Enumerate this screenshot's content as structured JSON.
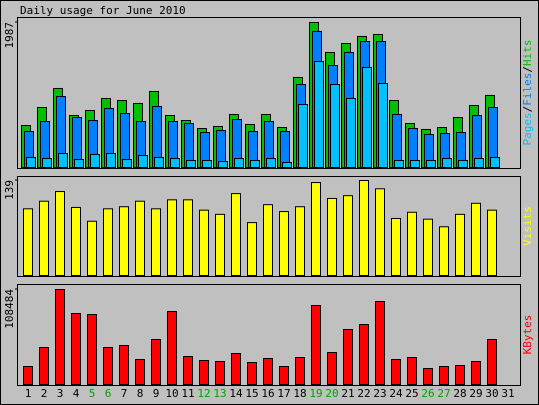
{
  "chart_data": [
    {
      "type": "grouped-overlap-bar",
      "title": "Daily usage for June 2010",
      "ylim": [
        0,
        1987
      ],
      "yticks": [
        1987
      ],
      "legend_separator": "/",
      "series": [
        {
          "name": "Hits",
          "color": "#00c000",
          "values": [
            585,
            830,
            1089,
            721,
            789,
            953,
            925,
            885,
            1048,
            721,
            653,
            544,
            572,
            735,
            599,
            735,
            558,
            1239,
            1987,
            1579,
            1701,
            1797,
            1824,
            925,
            612,
            531,
            558,
            694,
            857,
            994,
            null
          ]
        },
        {
          "name": "Files",
          "color": "#0080ff",
          "values": [
            504,
            640,
            980,
            694,
            653,
            817,
            749,
            640,
            844,
            640,
            612,
            490,
            517,
            667,
            504,
            640,
            504,
            1143,
            1865,
            1402,
            1579,
            1728,
            1728,
            735,
            544,
            463,
            476,
            490,
            721,
            830,
            null
          ]
        },
        {
          "name": "Pages",
          "color": "#00c0ff",
          "values": [
            150,
            136,
            204,
            122,
            191,
            204,
            122,
            177,
            150,
            136,
            109,
            109,
            95,
            136,
            109,
            136,
            82,
            871,
            1456,
            1143,
            953,
            1375,
            1157,
            109,
            109,
            109,
            136,
            109,
            136,
            150,
            null
          ]
        }
      ]
    },
    {
      "type": "bar",
      "ylim": [
        0,
        139
      ],
      "yticks": [
        139
      ],
      "series": [
        {
          "name": "Visits",
          "color": "#ffff00",
          "values": [
            98,
            109,
            123,
            100,
            80,
            98,
            101,
            109,
            98,
            111,
            111,
            96,
            90,
            120,
            78,
            104,
            94,
            101,
            136,
            113,
            117,
            139,
            127,
            84,
            93,
            83,
            72,
            90,
            106,
            96,
            null
          ]
        }
      ]
    },
    {
      "type": "bar",
      "ylim": [
        0,
        108484
      ],
      "yticks": [
        108484
      ],
      "categories": [
        "1",
        "2",
        "3",
        "4",
        "5",
        "6",
        "7",
        "8",
        "9",
        "10",
        "11",
        "12",
        "13",
        "14",
        "15",
        "16",
        "17",
        "18",
        "19",
        "20",
        "21",
        "22",
        "23",
        "24",
        "25",
        "26",
        "27",
        "28",
        "29",
        "30",
        "31"
      ],
      "weekend_days": [
        "5",
        "6",
        "12",
        "13",
        "19",
        "20",
        "26",
        "27"
      ],
      "weekend_color": "#00a000",
      "series": [
        {
          "name": "KBytes",
          "color": "#ff0000",
          "values": [
            21470,
            42940,
            108484,
            81360,
            80230,
            42940,
            45200,
            29380,
            51980,
            83620,
            32770,
            28250,
            27120,
            36160,
            25990,
            30510,
            21470,
            31640,
            90400,
            37290,
            63280,
            68930,
            94920,
            29380,
            31640,
            19210,
            21470,
            22600,
            27120,
            51980,
            null
          ]
        }
      ]
    }
  ]
}
